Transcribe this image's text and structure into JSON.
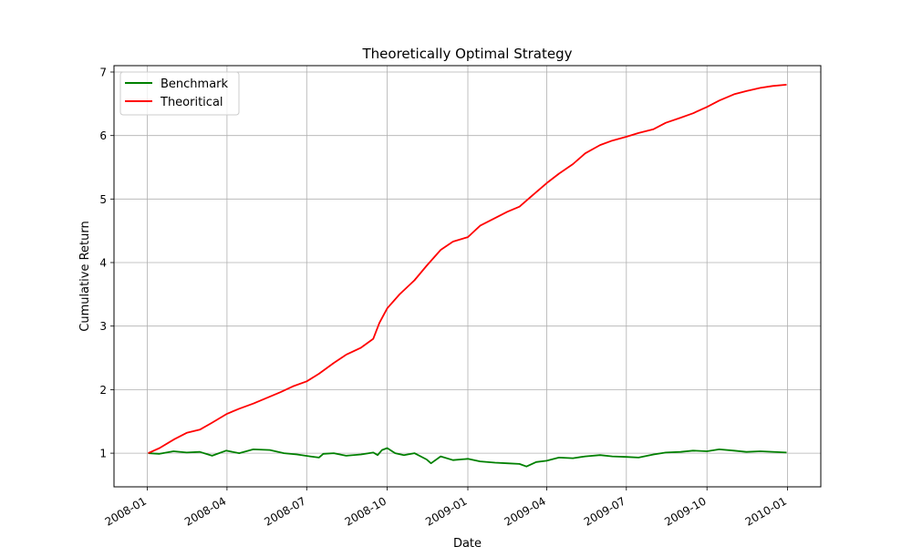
{
  "chart_data": {
    "type": "line",
    "title": "Theoretically Optimal Strategy",
    "xlabel": "Date",
    "ylabel": "Cumulative Return",
    "xlim": [
      "2007-11-24",
      "2010-02-08"
    ],
    "ylim": [
      0.47,
      7.1
    ],
    "x_ticks": [
      "2008-01",
      "2008-04",
      "2008-07",
      "2008-10",
      "2009-01",
      "2009-04",
      "2009-07",
      "2009-10",
      "2010-01"
    ],
    "y_ticks": [
      1,
      2,
      3,
      4,
      5,
      6,
      7
    ],
    "grid": true,
    "legend_position": "top-left",
    "series": [
      {
        "name": "Benchmark",
        "color": "#008000",
        "points": [
          [
            "2008-01-02",
            1.0
          ],
          [
            "2008-01-15",
            0.99
          ],
          [
            "2008-01-31",
            1.03
          ],
          [
            "2008-02-15",
            1.01
          ],
          [
            "2008-03-01",
            1.02
          ],
          [
            "2008-03-15",
            0.96
          ],
          [
            "2008-03-31",
            1.04
          ],
          [
            "2008-04-15",
            1.0
          ],
          [
            "2008-05-01",
            1.06
          ],
          [
            "2008-05-20",
            1.05
          ],
          [
            "2008-06-05",
            1.0
          ],
          [
            "2008-06-20",
            0.98
          ],
          [
            "2008-07-05",
            0.95
          ],
          [
            "2008-07-15",
            0.93
          ],
          [
            "2008-07-20",
            0.99
          ],
          [
            "2008-08-01",
            1.0
          ],
          [
            "2008-08-15",
            0.96
          ],
          [
            "2008-09-01",
            0.98
          ],
          [
            "2008-09-15",
            1.01
          ],
          [
            "2008-09-20",
            0.97
          ],
          [
            "2008-09-25",
            1.05
          ],
          [
            "2008-10-01",
            1.08
          ],
          [
            "2008-10-10",
            1.0
          ],
          [
            "2008-10-20",
            0.97
          ],
          [
            "2008-11-01",
            1.0
          ],
          [
            "2008-11-15",
            0.9
          ],
          [
            "2008-11-20",
            0.84
          ],
          [
            "2008-12-01",
            0.95
          ],
          [
            "2008-12-15",
            0.89
          ],
          [
            "2009-01-01",
            0.91
          ],
          [
            "2009-01-15",
            0.87
          ],
          [
            "2009-02-01",
            0.85
          ],
          [
            "2009-02-15",
            0.84
          ],
          [
            "2009-03-01",
            0.83
          ],
          [
            "2009-03-09",
            0.79
          ],
          [
            "2009-03-20",
            0.86
          ],
          [
            "2009-04-01",
            0.88
          ],
          [
            "2009-04-15",
            0.93
          ],
          [
            "2009-05-01",
            0.92
          ],
          [
            "2009-05-15",
            0.95
          ],
          [
            "2009-06-01",
            0.97
          ],
          [
            "2009-06-15",
            0.95
          ],
          [
            "2009-07-01",
            0.94
          ],
          [
            "2009-07-15",
            0.93
          ],
          [
            "2009-08-01",
            0.98
          ],
          [
            "2009-08-15",
            1.01
          ],
          [
            "2009-09-01",
            1.02
          ],
          [
            "2009-09-15",
            1.04
          ],
          [
            "2009-10-01",
            1.03
          ],
          [
            "2009-10-15",
            1.06
          ],
          [
            "2009-11-01",
            1.04
          ],
          [
            "2009-11-15",
            1.02
          ],
          [
            "2009-12-01",
            1.03
          ],
          [
            "2009-12-31",
            1.01
          ]
        ]
      },
      {
        "name": "Theoritical",
        "color": "#ff0000",
        "points": [
          [
            "2008-01-02",
            1.0
          ],
          [
            "2008-01-15",
            1.08
          ],
          [
            "2008-02-01",
            1.22
          ],
          [
            "2008-02-15",
            1.32
          ],
          [
            "2008-03-01",
            1.37
          ],
          [
            "2008-03-15",
            1.48
          ],
          [
            "2008-04-01",
            1.62
          ],
          [
            "2008-04-15",
            1.7
          ],
          [
            "2008-05-01",
            1.78
          ],
          [
            "2008-05-15",
            1.86
          ],
          [
            "2008-06-01",
            1.96
          ],
          [
            "2008-06-15",
            2.05
          ],
          [
            "2008-07-01",
            2.13
          ],
          [
            "2008-07-15",
            2.25
          ],
          [
            "2008-08-01",
            2.42
          ],
          [
            "2008-08-15",
            2.55
          ],
          [
            "2008-09-01",
            2.66
          ],
          [
            "2008-09-15",
            2.8
          ],
          [
            "2008-09-22",
            3.05
          ],
          [
            "2008-10-01",
            3.28
          ],
          [
            "2008-10-15",
            3.5
          ],
          [
            "2008-11-01",
            3.72
          ],
          [
            "2008-11-15",
            3.95
          ],
          [
            "2008-12-01",
            4.2
          ],
          [
            "2008-12-15",
            4.33
          ],
          [
            "2009-01-01",
            4.4
          ],
          [
            "2009-01-15",
            4.58
          ],
          [
            "2009-02-01",
            4.7
          ],
          [
            "2009-02-15",
            4.8
          ],
          [
            "2009-03-01",
            4.88
          ],
          [
            "2009-03-15",
            5.05
          ],
          [
            "2009-04-01",
            5.25
          ],
          [
            "2009-04-15",
            5.4
          ],
          [
            "2009-05-01",
            5.55
          ],
          [
            "2009-05-15",
            5.72
          ],
          [
            "2009-06-01",
            5.85
          ],
          [
            "2009-06-15",
            5.92
          ],
          [
            "2009-07-01",
            5.98
          ],
          [
            "2009-07-15",
            6.04
          ],
          [
            "2009-08-01",
            6.1
          ],
          [
            "2009-08-15",
            6.2
          ],
          [
            "2009-09-01",
            6.28
          ],
          [
            "2009-09-15",
            6.35
          ],
          [
            "2009-10-01",
            6.45
          ],
          [
            "2009-10-15",
            6.55
          ],
          [
            "2009-11-01",
            6.65
          ],
          [
            "2009-11-15",
            6.7
          ],
          [
            "2009-12-01",
            6.75
          ],
          [
            "2009-12-15",
            6.78
          ],
          [
            "2009-12-31",
            6.8
          ]
        ]
      }
    ]
  }
}
